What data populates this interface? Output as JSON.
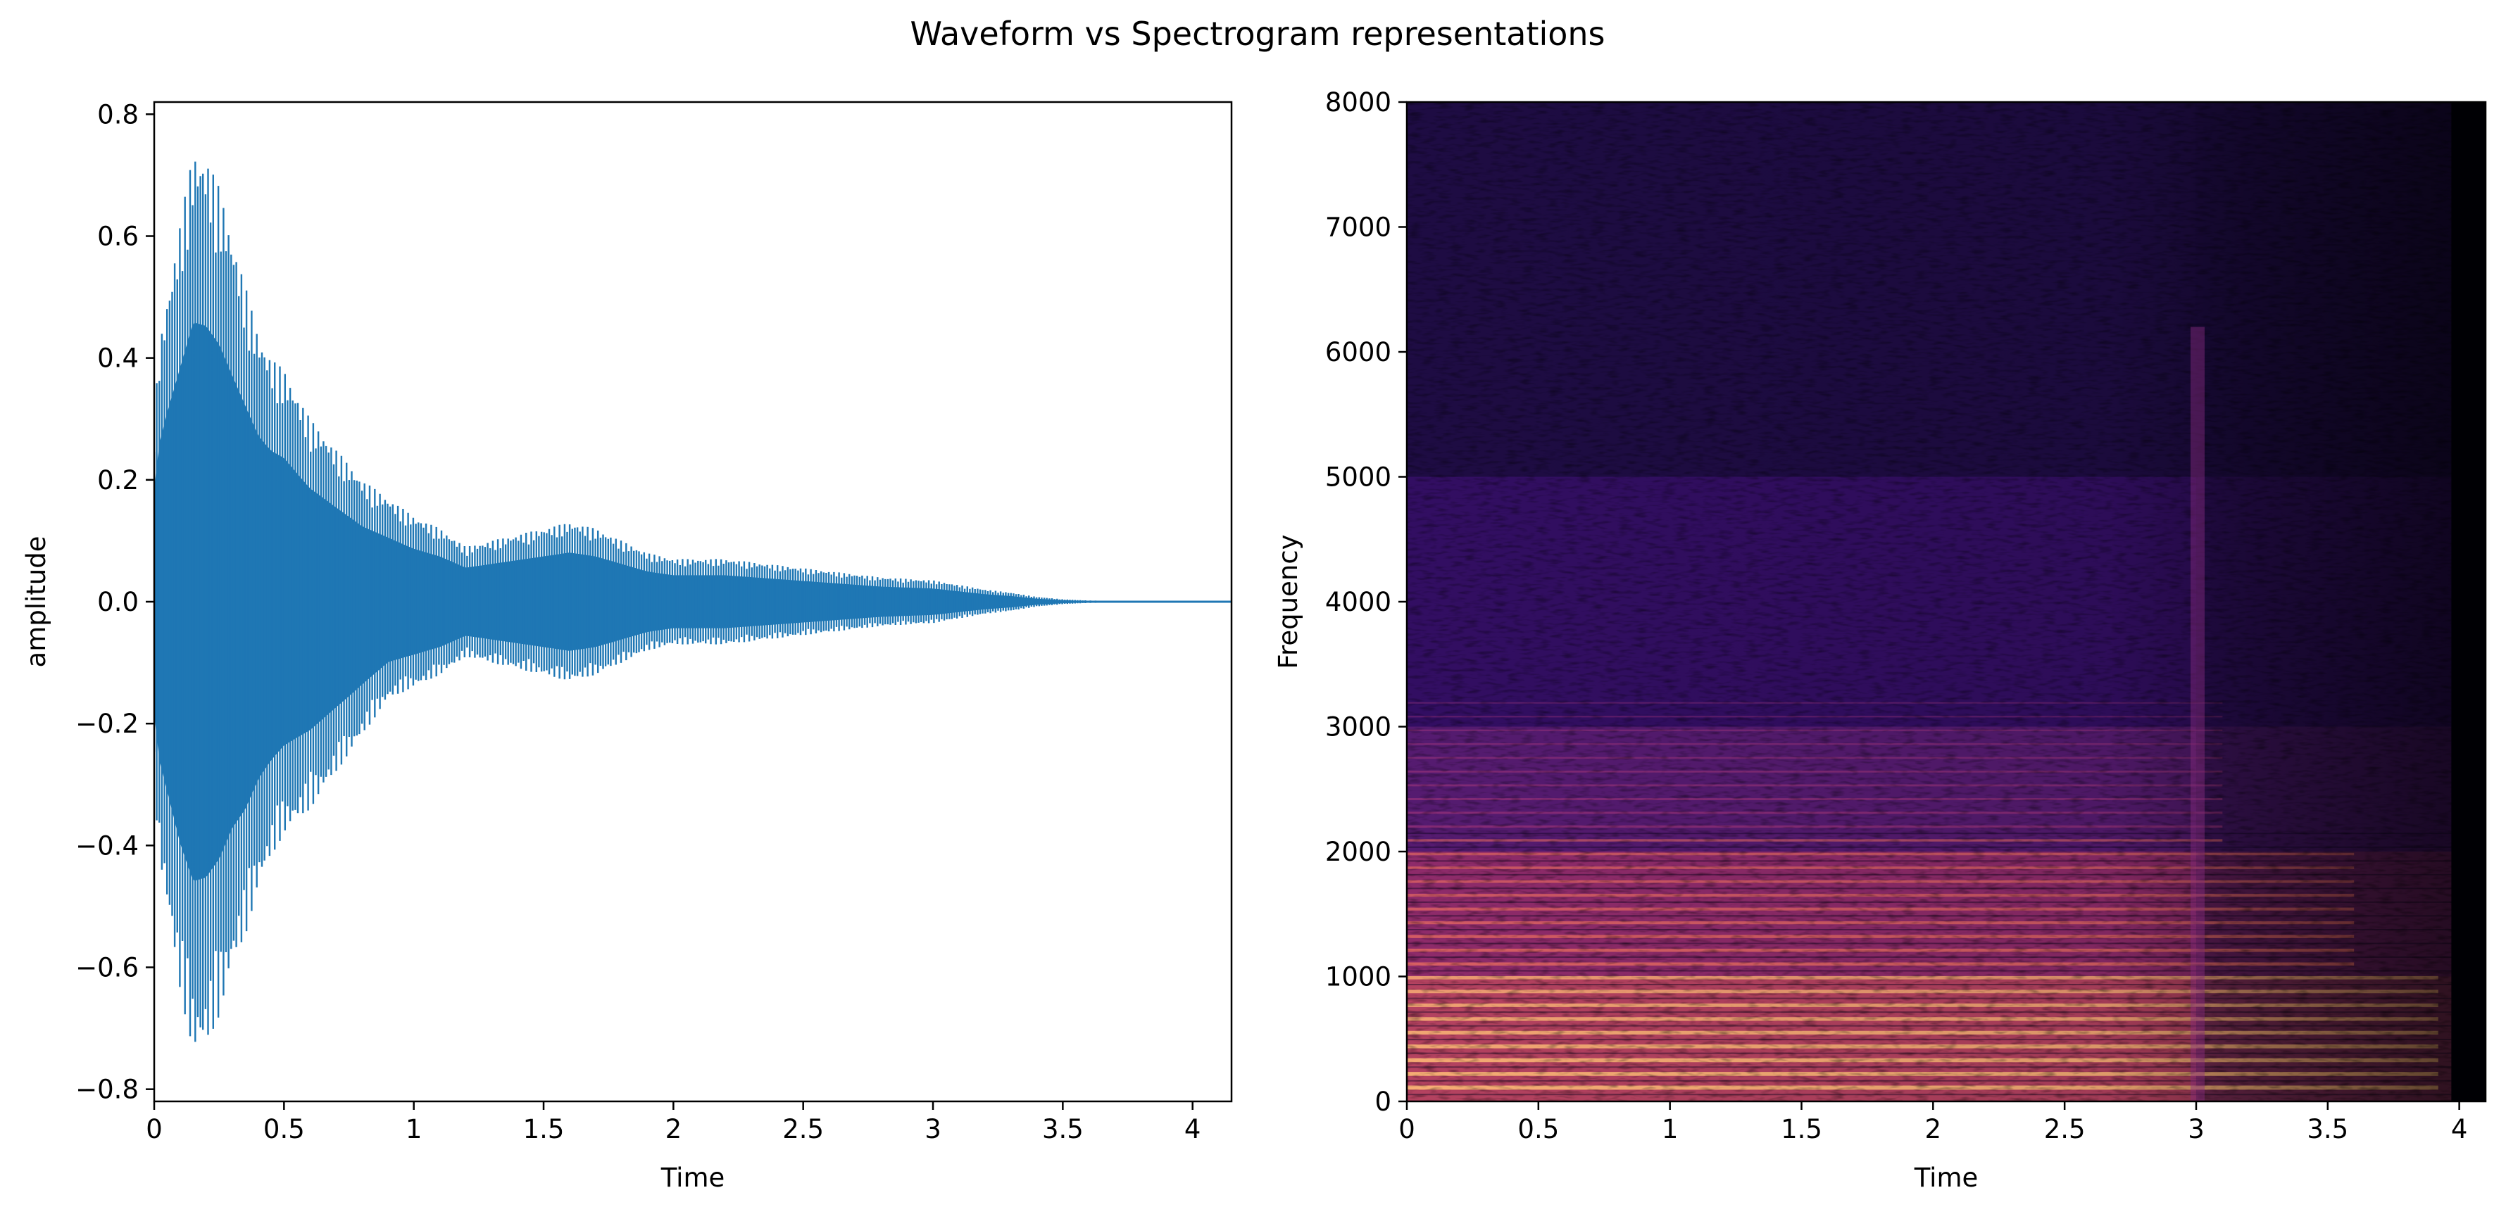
{
  "figure": {
    "title": "Waveform vs Spectrogram representations"
  },
  "chart_data": [
    {
      "type": "line",
      "title": "",
      "xlabel": "Time",
      "ylabel": "amplitude",
      "xlim": [
        0,
        4.15
      ],
      "ylim": [
        -0.82,
        0.82
      ],
      "xticks": [
        0,
        0.5,
        1,
        1.5,
        2,
        2.5,
        3,
        3.5,
        4
      ],
      "xtick_labels": [
        "0",
        "0.5",
        "1",
        "1.5",
        "2",
        "2.5",
        "3",
        "3.5",
        "4"
      ],
      "yticks": [
        0.8,
        0.6,
        0.4,
        0.2,
        0.0,
        -0.2,
        -0.4,
        -0.6,
        -0.8
      ],
      "ytick_labels": [
        "0.8",
        "0.6",
        "0.4",
        "0.2",
        "0.0",
        "−0.2",
        "−0.4",
        "−0.6",
        "−0.8"
      ],
      "grid": false,
      "color": "#1f77b4",
      "series": [
        {
          "description_values": "upper envelope of the oscillating waveform (amplitude vs time)",
          "x": [
            0,
            0.02,
            0.05,
            0.1,
            0.15,
            0.2,
            0.25,
            0.3,
            0.35,
            0.4,
            0.45,
            0.5,
            0.6,
            0.7,
            0.8,
            0.9,
            1.0,
            1.1,
            1.2,
            1.3,
            1.4,
            1.5,
            1.6,
            1.7,
            1.8,
            1.9,
            2.0,
            2.2,
            2.4,
            2.6,
            2.8,
            3.0,
            3.2,
            3.3,
            3.4,
            3.5,
            3.6,
            3.8,
            4.0,
            4.15
          ],
          "upper": [
            0.3,
            0.42,
            0.5,
            0.62,
            0.74,
            0.73,
            0.68,
            0.6,
            0.52,
            0.44,
            0.4,
            0.38,
            0.3,
            0.25,
            0.2,
            0.17,
            0.14,
            0.12,
            0.09,
            0.1,
            0.11,
            0.12,
            0.13,
            0.12,
            0.1,
            0.08,
            0.07,
            0.07,
            0.06,
            0.05,
            0.04,
            0.035,
            0.02,
            0.015,
            0.008,
            0.004,
            0.002,
            0.001,
            0.0005,
            0.0003
          ],
          "lower": [
            -0.3,
            -0.42,
            -0.5,
            -0.64,
            -0.74,
            -0.73,
            -0.68,
            -0.6,
            -0.55,
            -0.47,
            -0.42,
            -0.38,
            -0.34,
            -0.28,
            -0.22,
            -0.16,
            -0.14,
            -0.12,
            -0.09,
            -0.1,
            -0.11,
            -0.12,
            -0.13,
            -0.12,
            -0.1,
            -0.08,
            -0.07,
            -0.07,
            -0.06,
            -0.05,
            -0.04,
            -0.035,
            -0.02,
            -0.015,
            -0.008,
            -0.004,
            -0.002,
            -0.001,
            -0.0005,
            -0.0003
          ]
        }
      ]
    },
    {
      "type": "heatmap",
      "title": "",
      "xlabel": "Time",
      "ylabel": "Frequency",
      "xlim": [
        0,
        4.1
      ],
      "ylim": [
        0,
        8000
      ],
      "xticks": [
        0,
        0.5,
        1,
        1.5,
        2,
        2.5,
        3,
        3.5,
        4
      ],
      "xtick_labels": [
        "0",
        "0.5",
        "1",
        "1.5",
        "2",
        "2.5",
        "3",
        "3.5",
        "4"
      ],
      "yticks": [
        8000,
        7000,
        6000,
        5000,
        4000,
        3000,
        2000,
        1000,
        0
      ],
      "ytick_labels": [
        "8000",
        "7000",
        "6000",
        "5000",
        "4000",
        "3000",
        "2000",
        "1000",
        "0"
      ],
      "colormap": "magma",
      "signal_end_time": 3.97,
      "onset_time": 3.0,
      "harmonic_spacing_hz": 110,
      "grid": false
    }
  ]
}
